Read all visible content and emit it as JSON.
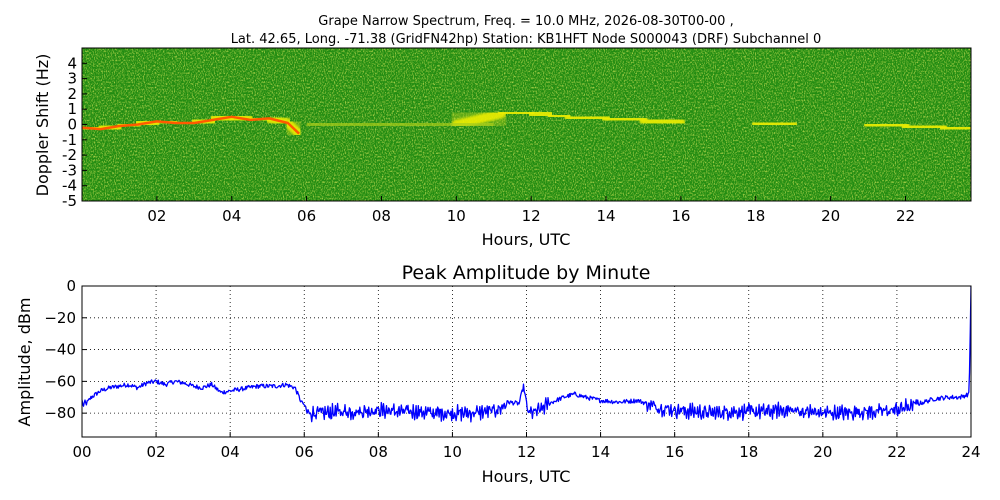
{
  "title_line1": "Grape Narrow Spectrum, Freq. = 10.0 MHz, 2026-08-30T00-00 ,",
  "title_line2": "Lat.  42.65, Long. -71.38 (GridFN42hp) Station: KB1HFT Node S000043 (DRF) Subchannel 0",
  "colors": {
    "spectrum_background": "#228c12",
    "spectrum_mid": "#a9cd1a",
    "spectrum_high": "#f2f000",
    "spectrum_peak": "#ff5a00",
    "amplitude_line": "#0000ff"
  },
  "chart_data": [
    {
      "type": "heatmap",
      "title": "",
      "xlabel": "Hours, UTC",
      "ylabel": "Doppler Shift (Hz)",
      "xlim": [
        0,
        23.75
      ],
      "ylim": [
        -5,
        5
      ],
      "x_ticks": [
        2,
        4,
        6,
        8,
        10,
        12,
        14,
        16,
        18,
        20,
        22
      ],
      "x_tick_labels": [
        "02",
        "04",
        "06",
        "08",
        "10",
        "12",
        "14",
        "16",
        "18",
        "20",
        "22"
      ],
      "y_ticks": [
        -5,
        -4,
        -3,
        -2,
        -1,
        0,
        1,
        2,
        3,
        4
      ],
      "y_tick_labels": [
        "-5",
        "-4",
        "-3",
        "-2",
        "-1",
        "0",
        "1",
        "2",
        "3",
        "4"
      ],
      "peak_doppler_track": {
        "x": [
          0,
          0.5,
          1,
          1.5,
          2,
          2.5,
          3,
          3.5,
          4,
          4.5,
          5,
          5.5,
          5.8,
          8,
          9,
          10,
          11.2,
          12,
          12.5,
          13,
          14,
          15,
          16,
          17,
          18,
          19,
          20,
          21,
          22,
          23,
          23.75
        ],
        "y": [
          -0.2,
          -0.3,
          -0.1,
          0.0,
          0.2,
          0.1,
          0.1,
          0.3,
          0.5,
          0.3,
          0.4,
          0.1,
          -0.6,
          0.0,
          0.0,
          0.0,
          0.7,
          0.8,
          0.6,
          0.5,
          0.4,
          0.3,
          0.1,
          0.1,
          0.1,
          0.0,
          0.0,
          0.0,
          -0.1,
          -0.2,
          -0.3
        ]
      }
    },
    {
      "type": "line",
      "title": "Peak Amplitude by Minute",
      "xlabel": "Hours, UTC",
      "ylabel": "Amplitude, dBm",
      "xlim": [
        0,
        24
      ],
      "ylim": [
        -95,
        0
      ],
      "grid": true,
      "x_ticks": [
        0,
        2,
        4,
        6,
        8,
        10,
        12,
        14,
        16,
        18,
        20,
        22,
        24
      ],
      "x_tick_labels": [
        "00",
        "02",
        "04",
        "06",
        "08",
        "10",
        "12",
        "14",
        "16",
        "18",
        "20",
        "22",
        "24"
      ],
      "y_ticks": [
        0,
        -20,
        -40,
        -60,
        -80
      ],
      "y_tick_labels": [
        "0",
        "−20",
        "−40",
        "−60",
        "−80"
      ],
      "x": [
        0,
        0.05,
        0.25,
        0.5,
        0.75,
        1,
        1.25,
        1.5,
        1.75,
        2,
        2.25,
        2.5,
        2.75,
        3,
        3.25,
        3.5,
        3.75,
        4,
        4.25,
        4.5,
        4.75,
        5,
        5.25,
        5.5,
        5.75,
        5.9,
        6.1,
        6.5,
        7,
        7.5,
        8,
        8.5,
        9,
        9.5,
        10,
        10.5,
        11,
        11.3,
        11.5,
        11.8,
        11.92,
        12.05,
        12.3,
        12.6,
        13,
        13.3,
        13.6,
        14,
        14.5,
        15,
        15.5,
        16,
        16.5,
        17,
        17.5,
        18,
        18.5,
        19,
        19.5,
        20,
        20.5,
        21,
        21.5,
        22,
        22.3,
        22.6,
        23,
        23.4,
        23.7,
        23.95,
        24
      ],
      "y": [
        -72,
        -76,
        -70,
        -66,
        -64,
        -63,
        -62,
        -64,
        -61,
        -60,
        -62,
        -60,
        -61,
        -63,
        -64,
        -62,
        -67,
        -66,
        -65,
        -64,
        -63,
        -63,
        -63,
        -62,
        -64,
        -72,
        -80,
        -80,
        -79,
        -79,
        -78,
        -79,
        -79,
        -80,
        -80,
        -80,
        -79,
        -77,
        -73,
        -74,
        -63,
        -80,
        -79,
        -74,
        -70,
        -68,
        -70,
        -72,
        -73,
        -72,
        -76,
        -78,
        -79,
        -80,
        -79,
        -79,
        -79,
        -78,
        -79,
        -80,
        -80,
        -79,
        -79,
        -78,
        -76,
        -74,
        -71,
        -70,
        -70,
        -68,
        0
      ]
    }
  ]
}
